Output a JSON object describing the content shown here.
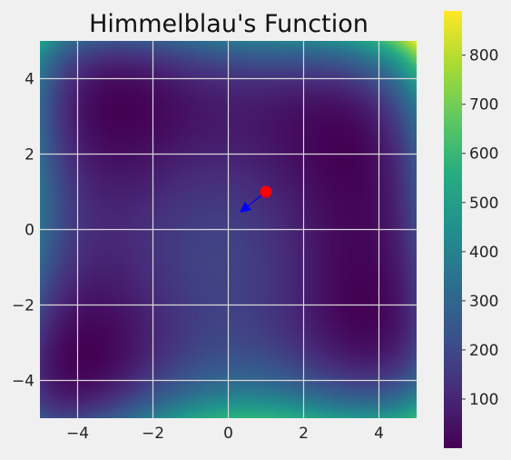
{
  "chart_data": {
    "type": "heatmap",
    "title": "Himmelblau's Function",
    "xlabel": "",
    "ylabel": "",
    "xlim": [
      -5,
      5
    ],
    "ylim": [
      -5,
      5
    ],
    "grid": true,
    "function": "(x^2 + y - 11)^2 + (x + y^2 - 7)^2",
    "colormap": "viridis",
    "x_ticks": [
      "−4",
      "−2",
      "0",
      "2",
      "4"
    ],
    "x_tick_values": [
      -4,
      -2,
      0,
      2,
      4
    ],
    "y_ticks": [
      "4",
      "2",
      "0",
      "−2",
      "−4"
    ],
    "y_tick_values": [
      4,
      2,
      0,
      -2,
      -4
    ],
    "colorbar": {
      "range": [
        0,
        890
      ],
      "ticks": [
        "800",
        "700",
        "600",
        "500",
        "400",
        "300",
        "200",
        "100"
      ],
      "tick_values": [
        800,
        700,
        600,
        500,
        400,
        300,
        200,
        100
      ]
    },
    "point": {
      "x": 1.0,
      "y": 1.0,
      "color": "#ff0000"
    },
    "arrow": {
      "x_start": 1.0,
      "y_start": 1.0,
      "x_end": 0.3,
      "y_end": 0.45,
      "color": "#0000ff"
    }
  }
}
